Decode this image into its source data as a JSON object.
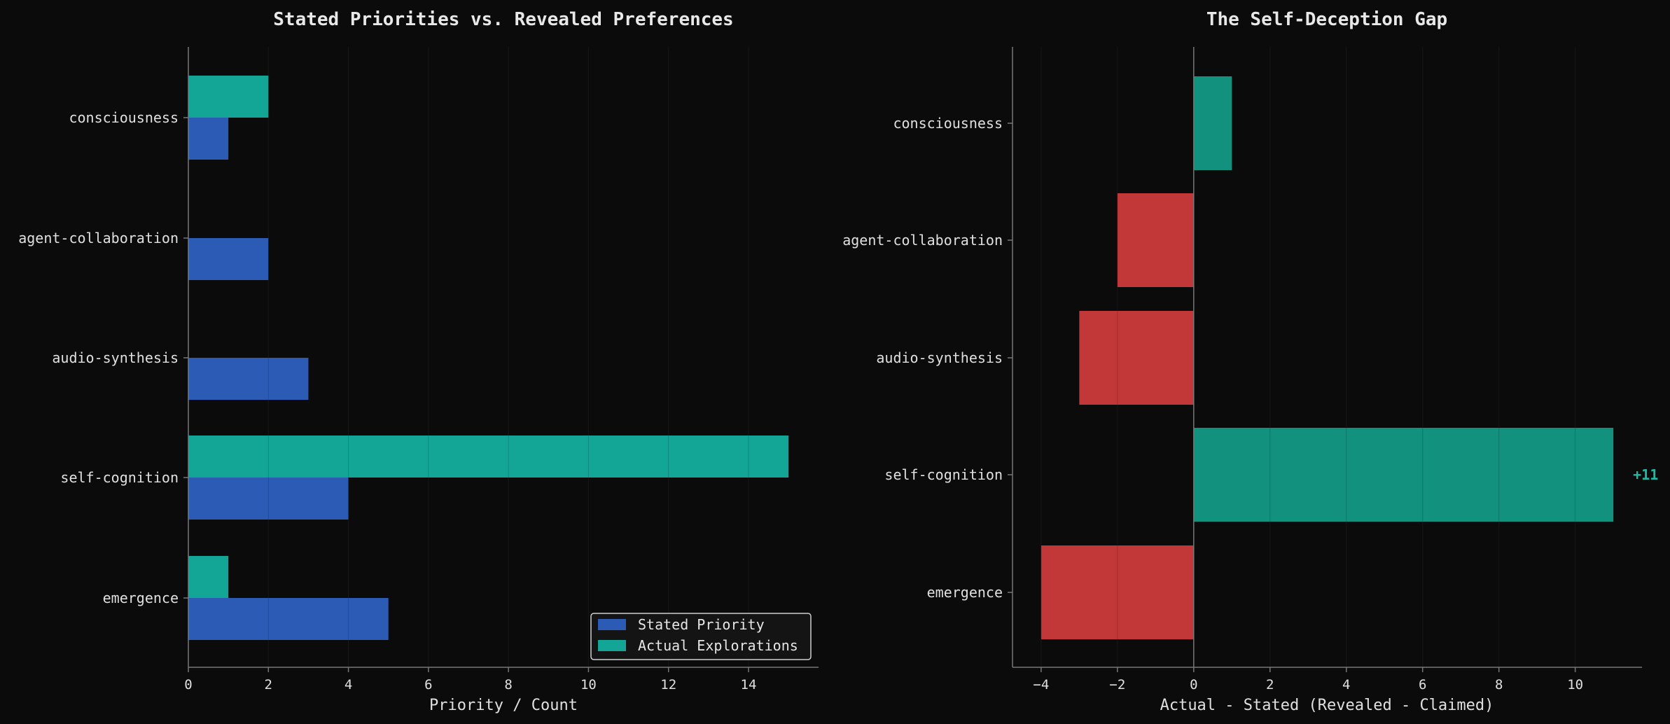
{
  "colors": {
    "background": "#0b0b0b",
    "stated": "#2b5bb5",
    "actual": "#13a697",
    "gap_positive": "#12917f",
    "gap_negative": "#c23838",
    "axis": "#777777",
    "grid": "#1c1c1c",
    "annotation": "#1fb8a3"
  },
  "chart_data": [
    {
      "type": "bar",
      "orientation": "horizontal",
      "title": "Stated Priorities vs. Revealed Preferences",
      "xlabel": "Priority / Count",
      "ylabel": "",
      "categories": [
        "consciousness",
        "agent-collaboration",
        "audio-synthesis",
        "self-cognition",
        "emergence"
      ],
      "series": [
        {
          "name": "Stated Priority",
          "values": [
            1,
            2,
            3,
            4,
            5
          ]
        },
        {
          "name": "Actual Explorations",
          "values": [
            2,
            0,
            0,
            15,
            1
          ]
        }
      ],
      "xlim": [
        0,
        15.75
      ],
      "xticks": [
        "0",
        "2",
        "4",
        "6",
        "8",
        "10",
        "12",
        "14"
      ],
      "grid": "vertical",
      "legend": "bottom-right"
    },
    {
      "type": "bar",
      "orientation": "horizontal",
      "title": "The Self-Deception Gap",
      "xlabel": "Actual - Stated (Revealed - Claimed)",
      "ylabel": "",
      "categories": [
        "consciousness",
        "agent-collaboration",
        "audio-synthesis",
        "self-cognition",
        "emergence"
      ],
      "values": [
        1,
        -2,
        -3,
        11,
        -4
      ],
      "xlim": [
        -4.75,
        11.75
      ],
      "xticks": [
        "−4",
        "−2",
        "0",
        "2",
        "4",
        "6",
        "8",
        "10"
      ],
      "annotations": [
        {
          "category": "self-cognition",
          "text": "+11"
        }
      ],
      "grid": "vertical",
      "legend": "none"
    }
  ]
}
